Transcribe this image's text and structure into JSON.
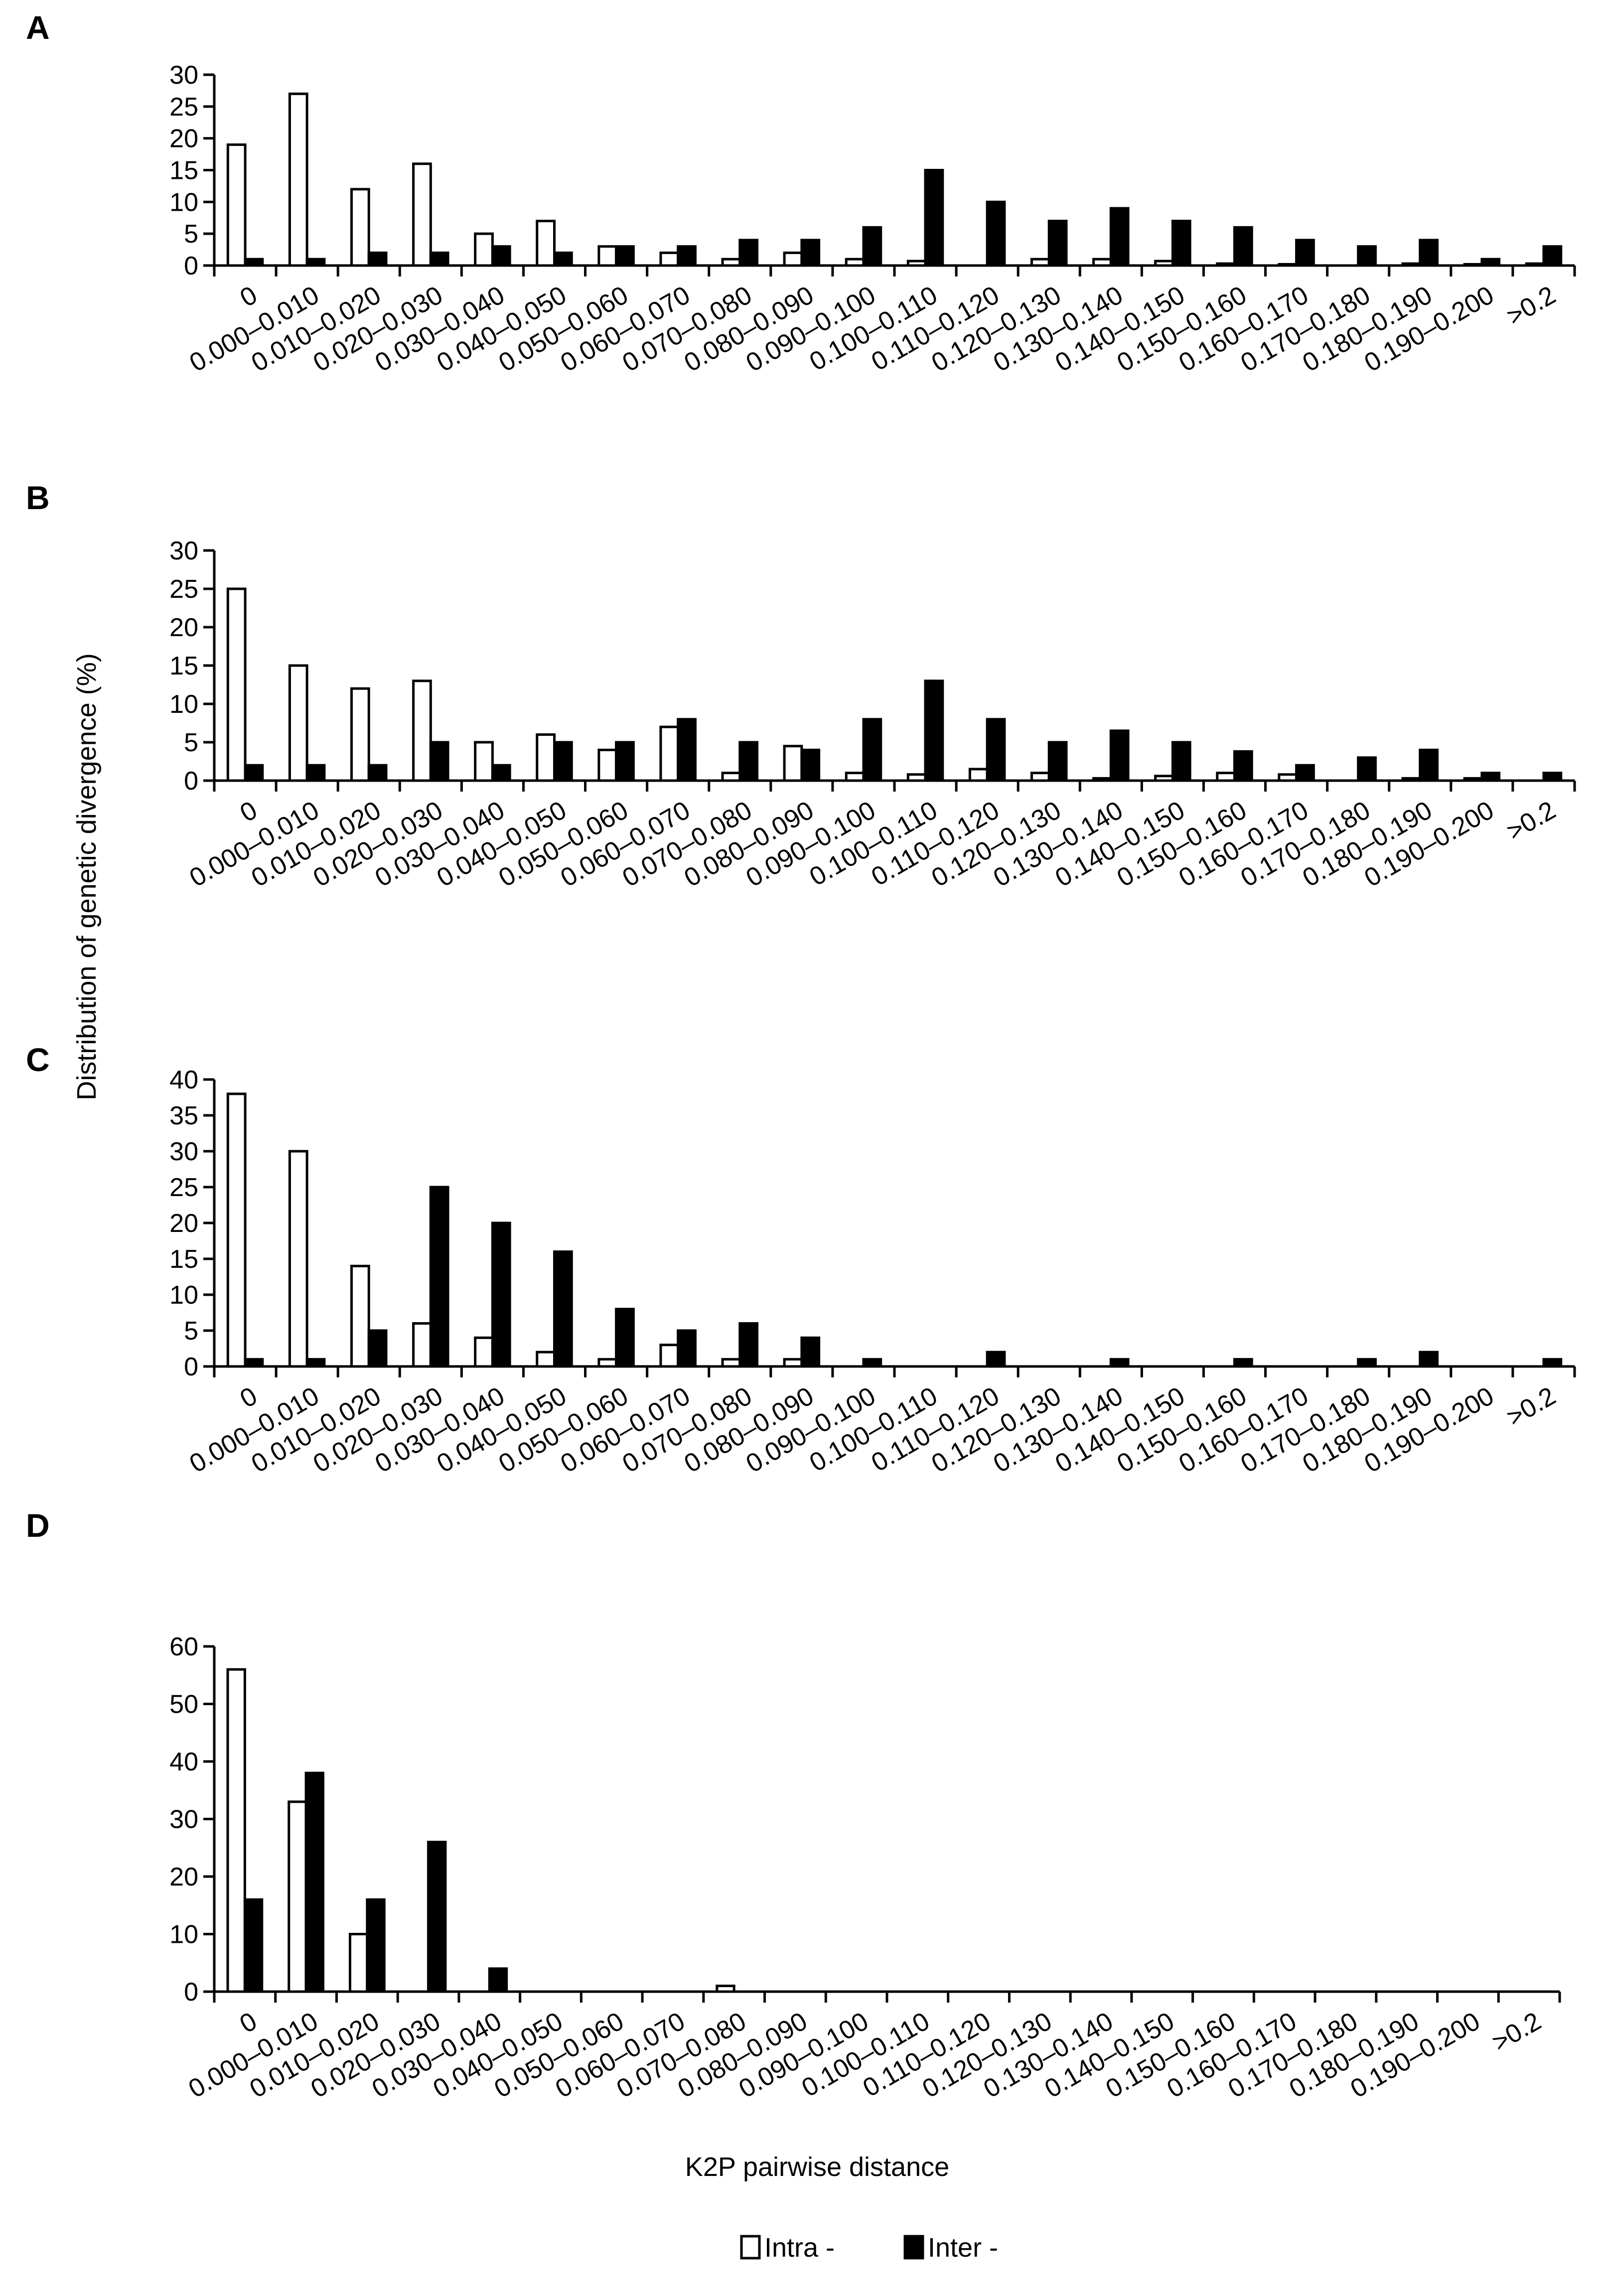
{
  "ylabel": "Distribution of genetic divergence (%)",
  "xlabel": "K2P pairwise distance",
  "legend": {
    "placement": "bottom-center",
    "items": [
      {
        "label": "Intra -",
        "color": "#ffffff"
      },
      {
        "label": "Inter -",
        "color": "#000000"
      }
    ]
  },
  "chart_data": [
    {
      "panel": "A",
      "type": "bar",
      "ylim": [
        0,
        30
      ],
      "yticks": [
        0,
        5,
        10,
        15,
        20,
        25,
        30
      ],
      "categories": [
        "0",
        "0.000–0.010",
        "0.010–0.020",
        "0.020–0.030",
        "0.030–0.040",
        "0.040–0.050",
        "0.050–0.060",
        "0.060–0.070",
        "0.070–0.080",
        "0.080–0.090",
        "0.090–0.100",
        "0.100–0.110",
        "0.110–0.120",
        "0.120–0.130",
        "0.130–0.140",
        "0.140–0.150",
        "0.150–0.160",
        "0.160–0.170",
        "0.170–0.180",
        "0.180–0.190",
        "0.190–0.200",
        ">0.2"
      ],
      "series": [
        {
          "name": "Intra -",
          "values": [
            19,
            27,
            12,
            16,
            5,
            7,
            3,
            2,
            1,
            2,
            1,
            0.7,
            0,
            1,
            1,
            0.7,
            0.3,
            0.2,
            0,
            0.3,
            0.2,
            0.3
          ]
        },
        {
          "name": "Inter -",
          "values": [
            1,
            1,
            2,
            2,
            3,
            2,
            3,
            3,
            4,
            4,
            6,
            15,
            10,
            7,
            9,
            7,
            6,
            4,
            3,
            4,
            1,
            3
          ]
        }
      ]
    },
    {
      "panel": "B",
      "type": "bar",
      "ylim": [
        0,
        30
      ],
      "yticks": [
        0,
        5,
        10,
        15,
        20,
        25,
        30
      ],
      "categories": [
        "0",
        "0.000–0.010",
        "0.010–0.020",
        "0.020–0.030",
        "0.030–0.040",
        "0.040–0.050",
        "0.050–0.060",
        "0.060–0.070",
        "0.070–0.080",
        "0.080–0.090",
        "0.090–0.100",
        "0.100–0.110",
        "0.110–0.120",
        "0.120–0.130",
        "0.130–0.140",
        "0.140–0.150",
        "0.150–0.160",
        "0.160–0.170",
        "0.170–0.180",
        "0.180–0.190",
        "0.190–0.200",
        ">0.2"
      ],
      "series": [
        {
          "name": "Intra -",
          "values": [
            25,
            15,
            12,
            13,
            5,
            6,
            4,
            7,
            1,
            4.5,
            1,
            0.8,
            1.5,
            1,
            0.3,
            0.6,
            1,
            0.8,
            0,
            0.3,
            0.3,
            0
          ]
        },
        {
          "name": "Inter -",
          "values": [
            2,
            2,
            2,
            5,
            2,
            5,
            5,
            8,
            5,
            4,
            8,
            13,
            8,
            5,
            6.5,
            5,
            3.8,
            2,
            3,
            4,
            1,
            1
          ]
        }
      ]
    },
    {
      "panel": "C",
      "type": "bar",
      "ylim": [
        0,
        40
      ],
      "yticks": [
        0,
        5,
        10,
        15,
        20,
        25,
        30,
        35,
        40
      ],
      "categories": [
        "0",
        "0.000–0.010",
        "0.010–0.020",
        "0.020–0.030",
        "0.030–0.040",
        "0.040–0.050",
        "0.050–0.060",
        "0.060–0.070",
        "0.070–0.080",
        "0.080–0.090",
        "0.090–0.100",
        "0.100–0.110",
        "0.110–0.120",
        "0.120–0.130",
        "0.130–0.140",
        "0.140–0.150",
        "0.150–0.160",
        "0.160–0.170",
        "0.170–0.180",
        "0.180–0.190",
        "0.190–0.200",
        ">0.2"
      ],
      "series": [
        {
          "name": "Intra -",
          "values": [
            38,
            30,
            14,
            6,
            4,
            2,
            1,
            3,
            1,
            1,
            0,
            0,
            0,
            0,
            0,
            0,
            0,
            0,
            0,
            0,
            0,
            0
          ]
        },
        {
          "name": "Inter -",
          "values": [
            1,
            1,
            5,
            25,
            20,
            16,
            8,
            5,
            6,
            4,
            1,
            0,
            2,
            0,
            1,
            0,
            1,
            0,
            1,
            2,
            0,
            1
          ]
        }
      ]
    },
    {
      "panel": "D",
      "type": "bar",
      "ylim": [
        0,
        60
      ],
      "yticks": [
        0,
        10,
        20,
        30,
        40,
        50,
        60
      ],
      "categories": [
        "0",
        "0.000–0.010",
        "0.010–0.020",
        "0.020–0.030",
        "0.030–0.040",
        "0.040–0.050",
        "0.050–0.060",
        "0.060–0.070",
        "0.070–0.080",
        "0.080–0.090",
        "0.090–0.100",
        "0.100–0.110",
        "0.110–0.120",
        "0.120–0.130",
        "0.130–0.140",
        "0.140–0.150",
        "0.150–0.160",
        "0.160–0.170",
        "0.170–0.180",
        "0.180–0.190",
        "0.190–0.200",
        ">0.2"
      ],
      "series": [
        {
          "name": "Intra -",
          "values": [
            56,
            33,
            10,
            0,
            0,
            0,
            0,
            0,
            1,
            0,
            0,
            0,
            0,
            0,
            0,
            0,
            0,
            0,
            0,
            0,
            0,
            0
          ]
        },
        {
          "name": "Inter -",
          "values": [
            16,
            38,
            16,
            26,
            4,
            0,
            0,
            0,
            0,
            0,
            0,
            0,
            0,
            0,
            0,
            0,
            0,
            0,
            0,
            0,
            0,
            0
          ]
        }
      ]
    }
  ]
}
